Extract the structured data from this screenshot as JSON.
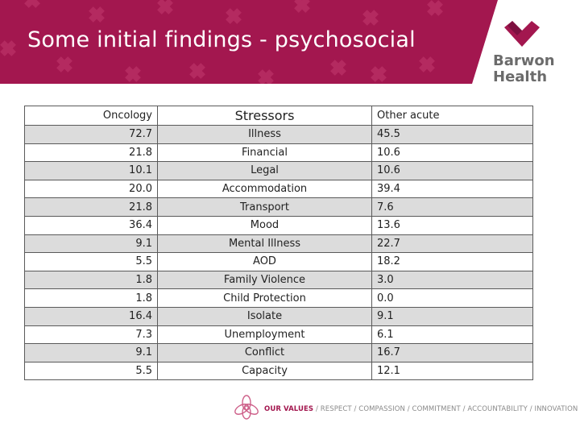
{
  "slide": {
    "title": "Some initial findings - psychosocial"
  },
  "logo": {
    "line1": "Barwon",
    "line2": "Health",
    "icon": "heart-icon"
  },
  "table": {
    "headers": {
      "oncology": "Oncology",
      "stressors": "Stressors",
      "other_acute": "Other acute"
    },
    "rows": [
      {
        "oncology": "72.7",
        "stressor": "Illness",
        "other": "45.5"
      },
      {
        "oncology": "21.8",
        "stressor": "Financial",
        "other": "10.6"
      },
      {
        "oncology": "10.1",
        "stressor": "Legal",
        "other": "10.6"
      },
      {
        "oncology": "20.0",
        "stressor": "Accommodation",
        "other": "39.4"
      },
      {
        "oncology": "21.8",
        "stressor": "Transport",
        "other": "7.6"
      },
      {
        "oncology": "36.4",
        "stressor": "Mood",
        "other": "13.6"
      },
      {
        "oncology": "9.1",
        "stressor": "Mental Illness",
        "other": "22.7"
      },
      {
        "oncology": "5.5",
        "stressor": "AOD",
        "other": "18.2"
      },
      {
        "oncology": "1.8",
        "stressor": "Family Violence",
        "other": "3.0"
      },
      {
        "oncology": "1.8",
        "stressor": "Child Protection",
        "other": "0.0"
      },
      {
        "oncology": "16.4",
        "stressor": "Isolate",
        "other": "9.1"
      },
      {
        "oncology": "7.3",
        "stressor": "Unemployment",
        "other": "6.1"
      },
      {
        "oncology": "9.1",
        "stressor": "Conflict",
        "other": "16.7"
      },
      {
        "oncology": "5.5",
        "stressor": "Capacity",
        "other": "12.1"
      }
    ]
  },
  "footer": {
    "our_values": "OUR VALUES",
    "values_list": " / RESPECT / COMPASSION / COMMITMENT / ACCOUNTABILITY / INNOVATION",
    "icon": "flower-icon"
  },
  "colors": {
    "banner": "#a3174f",
    "banner_pattern": "#c23a6e",
    "logo_text": "#6b6b6b",
    "row_shade": "#dcdcdc"
  }
}
